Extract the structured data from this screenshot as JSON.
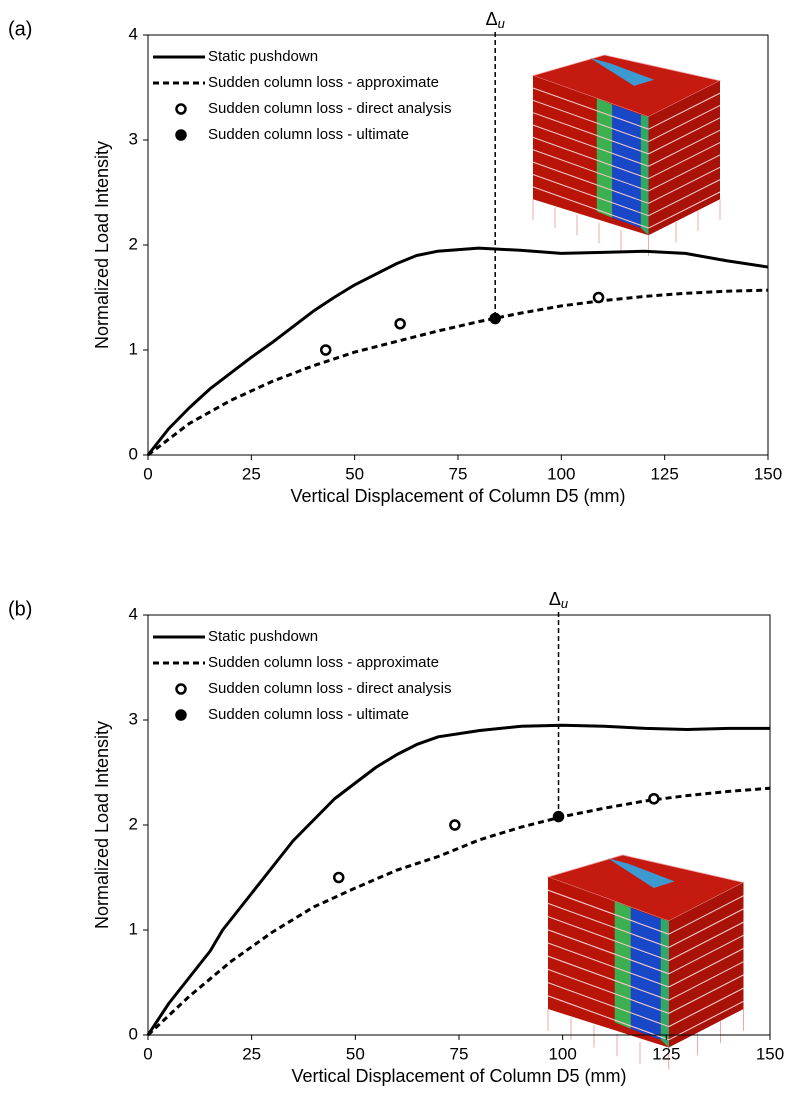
{
  "chart_data": [
    {
      "type": "line",
      "label": "(a)",
      "annotation": {
        "text": "Δ",
        "subscript": "u"
      },
      "x_label": "Vertical Displacement of Column D5 (mm)",
      "y_label": "Normalized Load Intensity",
      "xlim": [
        0,
        150
      ],
      "ylim": [
        0,
        4
      ],
      "xticks": [
        0,
        25,
        50,
        75,
        100,
        125,
        150
      ],
      "yticks": [
        0,
        1,
        2,
        3,
        4
      ],
      "legend": "upper left",
      "series": [
        {
          "name": "Static pushdown",
          "color": "#000000",
          "style": "solid",
          "x": [
            0,
            5,
            10,
            15,
            20,
            25,
            30,
            35,
            40,
            45,
            50,
            55,
            60,
            65,
            70,
            80,
            90,
            100,
            110,
            120,
            130,
            140,
            150
          ],
          "values": [
            0,
            0.25,
            0.45,
            0.63,
            0.78,
            0.93,
            1.07,
            1.22,
            1.37,
            1.5,
            1.62,
            1.72,
            1.82,
            1.9,
            1.94,
            1.97,
            1.95,
            1.92,
            1.93,
            1.94,
            1.92,
            1.85,
            1.79
          ]
        },
        {
          "name": "Sudden column loss - approximate",
          "color": "#000000",
          "style": "dashed",
          "x": [
            0,
            10,
            20,
            30,
            40,
            50,
            60,
            70,
            80,
            90,
            100,
            110,
            120,
            130,
            140,
            150
          ],
          "values": [
            0,
            0.3,
            0.52,
            0.7,
            0.85,
            0.98,
            1.08,
            1.18,
            1.27,
            1.35,
            1.42,
            1.47,
            1.51,
            1.54,
            1.56,
            1.57
          ]
        },
        {
          "name": "Sudden column loss - direct analysis",
          "color": "#000000",
          "style": "open-marker",
          "x": [
            43,
            61,
            109
          ],
          "values": [
            1,
            1.25,
            1.5
          ]
        },
        {
          "name": "Sudden column loss - ultimate",
          "color": "#000000",
          "style": "filled-marker",
          "x": [
            84
          ],
          "values": [
            1.3
          ]
        }
      ]
    },
    {
      "type": "line",
      "label": "(b)",
      "annotation": {
        "text": "Δ",
        "subscript": "u"
      },
      "x_label": "Vertical Displacement of Column D5 (mm)",
      "y_label": "Normalized Load Intensity",
      "xlim": [
        0,
        150
      ],
      "ylim": [
        0,
        4
      ],
      "xticks": [
        0,
        25,
        50,
        75,
        100,
        125,
        150
      ],
      "yticks": [
        0,
        1,
        2,
        3,
        4
      ],
      "legend": "upper left",
      "series": [
        {
          "name": "Static pushdown",
          "color": "#000000",
          "style": "solid",
          "x": [
            0,
            5,
            10,
            15,
            18,
            20,
            25,
            30,
            35,
            40,
            45,
            50,
            55,
            60,
            65,
            70,
            80,
            90,
            100,
            110,
            120,
            130,
            140,
            150
          ],
          "values": [
            0,
            0.3,
            0.55,
            0.8,
            1,
            1.1,
            1.35,
            1.6,
            1.85,
            2.05,
            2.25,
            2.4,
            2.55,
            2.67,
            2.77,
            2.84,
            2.9,
            2.94,
            2.95,
            2.94,
            2.92,
            2.91,
            2.92,
            2.92
          ]
        },
        {
          "name": "Sudden column loss - approximate",
          "color": "#000000",
          "style": "dashed",
          "x": [
            0,
            10,
            20,
            30,
            40,
            50,
            60,
            70,
            80,
            90,
            100,
            110,
            120,
            130,
            140,
            150
          ],
          "values": [
            0,
            0.37,
            0.7,
            0.98,
            1.22,
            1.4,
            1.57,
            1.7,
            1.86,
            1.98,
            2.08,
            2.16,
            2.23,
            2.28,
            2.32,
            2.35
          ]
        },
        {
          "name": "Sudden column loss - direct analysis",
          "color": "#000000",
          "style": "open-marker",
          "x": [
            46,
            74,
            122
          ],
          "values": [
            1.5,
            2,
            2.25
          ]
        },
        {
          "name": "Sudden column loss - ultimate",
          "color": "#000000",
          "style": "filled-marker",
          "x": [
            99
          ],
          "values": [
            2.08
          ]
        }
      ]
    }
  ]
}
